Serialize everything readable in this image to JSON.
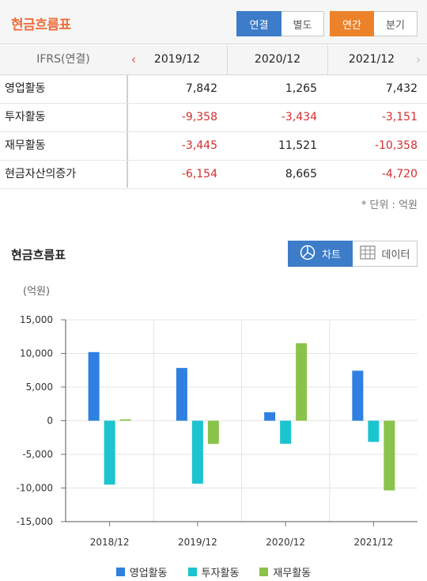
{
  "header": {
    "title": "현금흐름표",
    "seg1": [
      "연결",
      "별도"
    ],
    "seg2": [
      "연간",
      "분기"
    ]
  },
  "table": {
    "label_header": "IFRS(연결)",
    "columns": [
      "2019/12",
      "2020/12",
      "2021/12"
    ],
    "rows": [
      {
        "label": "영업활동",
        "values": [
          "7,842",
          "1,265",
          "7,432"
        ]
      },
      {
        "label": "투자활동",
        "values": [
          "-9,358",
          "-3,434",
          "-3,151"
        ]
      },
      {
        "label": "재무활동",
        "values": [
          "-3,445",
          "11,521",
          "-10,358"
        ]
      },
      {
        "label": "현금자산의증가",
        "values": [
          "-6,154",
          "8,665",
          "-4,720"
        ]
      }
    ],
    "unit_note": "* 단위 : 억원"
  },
  "chart_section": {
    "title": "현금흐름표",
    "chart_btn": "차트",
    "data_btn": "데이터",
    "y_unit": "(억원)"
  },
  "chart_data": {
    "type": "bar",
    "categories": [
      "2018/12",
      "2019/12",
      "2020/12",
      "2021/12"
    ],
    "series": [
      {
        "name": "영업활동",
        "color": "#2f80e0",
        "values": [
          10200,
          7842,
          1265,
          7432
        ]
      },
      {
        "name": "투자활동",
        "color": "#1cc4cf",
        "values": [
          -9500,
          -9358,
          -3434,
          -3151
        ]
      },
      {
        "name": "재무활동",
        "color": "#8bc34a",
        "values": [
          200,
          -3445,
          11521,
          -10358
        ]
      }
    ],
    "ylim": [
      -15000,
      15000
    ],
    "yticks": [
      15000,
      10000,
      5000,
      0,
      -5000,
      -10000,
      -15000
    ],
    "ytick_labels": [
      "15,000",
      "10,000",
      "5,000",
      "0",
      "-5,000",
      "-10,000",
      "-15,000"
    ],
    "grid": true,
    "legend": "bottom"
  }
}
